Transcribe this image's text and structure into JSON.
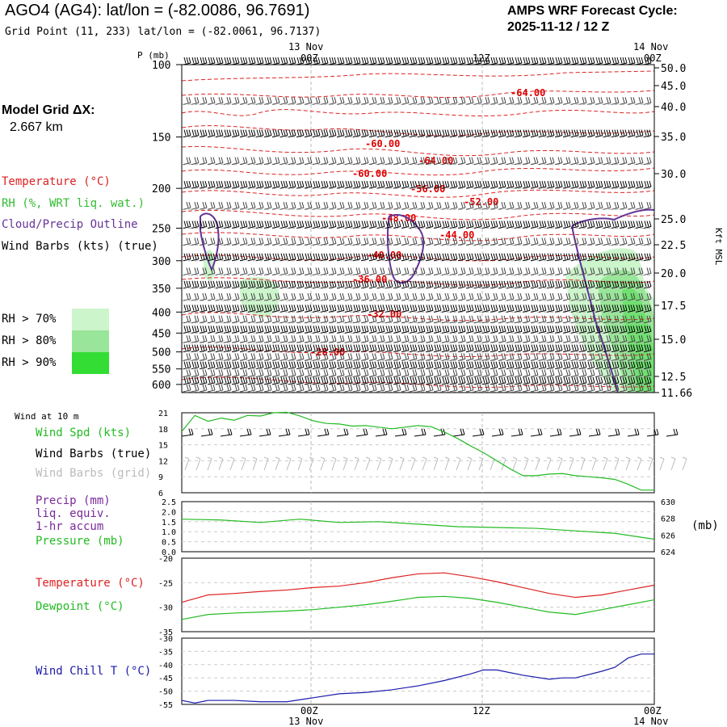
{
  "header": {
    "title": "AGO4 (AG4):  lat/lon = (-82.0086, 96.7691)",
    "grid_point": "Grid Point (11, 233) lat/lon = (-82.0061, 96.7137)",
    "cycle_line1": "AMPS WRF Forecast Cycle:",
    "cycle_line2": "2025-11-12 / 12  Z"
  },
  "model_grid": {
    "line1": "Model Grid ΔX:",
    "line2": "2.667 km"
  },
  "legend": {
    "temperature": "Temperature (°C)",
    "rh": "RH (%, WRT liq. wat.)",
    "cloud": "Cloud/Precip Outline",
    "wind": "Wind Barbs (kts) (true)",
    "rh70": "RH > 70%",
    "rh80": "RH > 80%",
    "rh90": "RH > 90%"
  },
  "colors": {
    "rh70": "#ccf5cc",
    "rh80": "#99e599",
    "rh90": "#33dd33",
    "temp": "#dd0000",
    "rh": "#33bb33",
    "cloud": "#663399",
    "wind": "#000000",
    "windgrid": "#bbbbbb",
    "precip": "#7a2a9a",
    "pressure": "#22bb22",
    "windchill": "#1a1aaa"
  },
  "time_axis": {
    "top_date_left": "13 Nov",
    "top_date_right": "14 Nov",
    "ticks": [
      "00Z",
      "12Z",
      "00Z"
    ],
    "bottom_date_left": "13 Nov",
    "bottom_date_right": "14 Nov"
  },
  "surface_labels": {
    "wind_at_10m": "Wind at 10 m",
    "wind_spd": "Wind Spd (kts)",
    "wind_barbs_true": "Wind Barbs (true)",
    "wind_barbs_grid": "Wind Barbs (grid)",
    "precip_1": "Precip (mm)",
    "precip_2": "liq. equiv.",
    "precip_3": "1-hr accum",
    "pressure": "Pressure (mb)",
    "pressure_unit": "(mb)",
    "temperature": "Temperature (°C)",
    "dewpoint": "Dewpoint (°C)",
    "windchill": "Wind Chill T (°C)"
  },
  "chart_data": [
    {
      "type": "line",
      "title": "",
      "ylabel": "P (mb)",
      "ylabel_right": "Kft MSL",
      "pressure_ticks": [
        "100",
        "150",
        "200",
        "250",
        "300",
        "350",
        "400",
        "450",
        "500",
        "550",
        "600"
      ],
      "height_ticks": [
        "50.0",
        "45.0",
        "40.0",
        "35.0",
        "30.0",
        "25.0",
        "22.5",
        "20.0",
        "17.5",
        "15.0",
        "12.5",
        "11.66"
      ],
      "temperature_contour_labels": [
        "-64.00",
        "-60.00",
        "-64.00",
        "-60.00",
        "-56.00",
        "-52.00",
        "-48.00",
        "-44.00",
        "-40.00",
        "-36.00",
        "-32.00",
        "-28.00"
      ]
    },
    {
      "type": "line",
      "title": "Wind at 10 m",
      "yticks": [
        "21",
        "18",
        "15",
        "12",
        "9",
        "6"
      ],
      "series": [
        {
          "name": "Wind Spd (kts)",
          "x_hours": [
            0,
            1,
            2,
            3,
            4,
            5,
            6,
            7,
            8,
            9,
            10,
            11,
            12,
            13,
            14,
            15,
            16,
            17,
            18,
            19,
            20,
            21,
            22,
            23,
            24,
            25,
            26,
            27,
            28,
            29,
            30,
            31,
            32,
            33,
            34,
            35,
            36
          ],
          "values": [
            17.5,
            20.5,
            19.4,
            20.0,
            19.6,
            20.5,
            20.4,
            21.0,
            21.1,
            20.4,
            19.5,
            19.0,
            18.9,
            18.5,
            18.6,
            18.3,
            18.0,
            18.3,
            18.6,
            18.4,
            17.4,
            16.2,
            14.8,
            13.5,
            12.0,
            10.5,
            9.2,
            9.2,
            9.5,
            9.6,
            9.2,
            9.0,
            8.8,
            8.5,
            7.6,
            6.5,
            6.5
          ]
        }
      ]
    },
    {
      "type": "line",
      "yticks_left": [
        "2.5",
        "2.0",
        "1.5",
        "1.0",
        "0.5",
        "0.0"
      ],
      "yticks_right": [
        "630",
        "628",
        "626",
        "624"
      ],
      "series": [
        {
          "name": "Pressure (mb)",
          "x_hours": [
            0,
            3,
            6,
            9,
            12,
            15,
            18,
            21,
            24,
            27,
            30,
            33,
            36
          ],
          "values": [
            627.9,
            627.8,
            627.5,
            627.9,
            627.5,
            627.6,
            627.3,
            627.0,
            626.9,
            626.8,
            626.5,
            626.2,
            625.5
          ]
        }
      ]
    },
    {
      "type": "line",
      "yticks": [
        "-20",
        "-25",
        "-30",
        "-35"
      ],
      "series": [
        {
          "name": "Temperature (°C)",
          "x_hours": [
            0,
            2,
            4,
            6,
            8,
            10,
            12,
            14,
            16,
            18,
            20,
            22,
            24,
            26,
            28,
            30,
            32,
            34,
            36
          ],
          "values": [
            -29.0,
            -27.5,
            -27.2,
            -26.8,
            -26.5,
            -26.0,
            -25.7,
            -25.0,
            -24.0,
            -23.2,
            -23.0,
            -23.8,
            -24.8,
            -26.0,
            -27.2,
            -28.0,
            -27.5,
            -26.5,
            -25.5
          ]
        },
        {
          "name": "Dewpoint (°C)",
          "x_hours": [
            0,
            2,
            4,
            6,
            8,
            10,
            12,
            14,
            16,
            18,
            20,
            22,
            24,
            26,
            28,
            30,
            32,
            34,
            36
          ],
          "values": [
            -32.5,
            -31.5,
            -31.2,
            -31.0,
            -30.8,
            -30.5,
            -30.0,
            -29.5,
            -28.8,
            -28.0,
            -27.8,
            -28.2,
            -29.0,
            -30.0,
            -31.0,
            -31.5,
            -30.5,
            -29.5,
            -28.5
          ]
        }
      ]
    },
    {
      "type": "line",
      "yticks": [
        "-30",
        "-35",
        "-40",
        "-45",
        "-50",
        "-55"
      ],
      "series": [
        {
          "name": "Wind Chill T (°C)",
          "x_hours": [
            0,
            1,
            2,
            4,
            6,
            8,
            10,
            12,
            14,
            16,
            18,
            20,
            22,
            23,
            24,
            26,
            28,
            29,
            30,
            32,
            33,
            34,
            35,
            36
          ],
          "values": [
            -53.5,
            -54.5,
            -53.5,
            -53.5,
            -54.0,
            -54.0,
            -52.5,
            -51.0,
            -50.5,
            -49.5,
            -48.0,
            -46.0,
            -43.5,
            -42.0,
            -42.0,
            -44.0,
            -45.5,
            -45.0,
            -45.0,
            -42.5,
            -41.0,
            -37.5,
            -36.0,
            -36.0
          ]
        }
      ]
    }
  ]
}
